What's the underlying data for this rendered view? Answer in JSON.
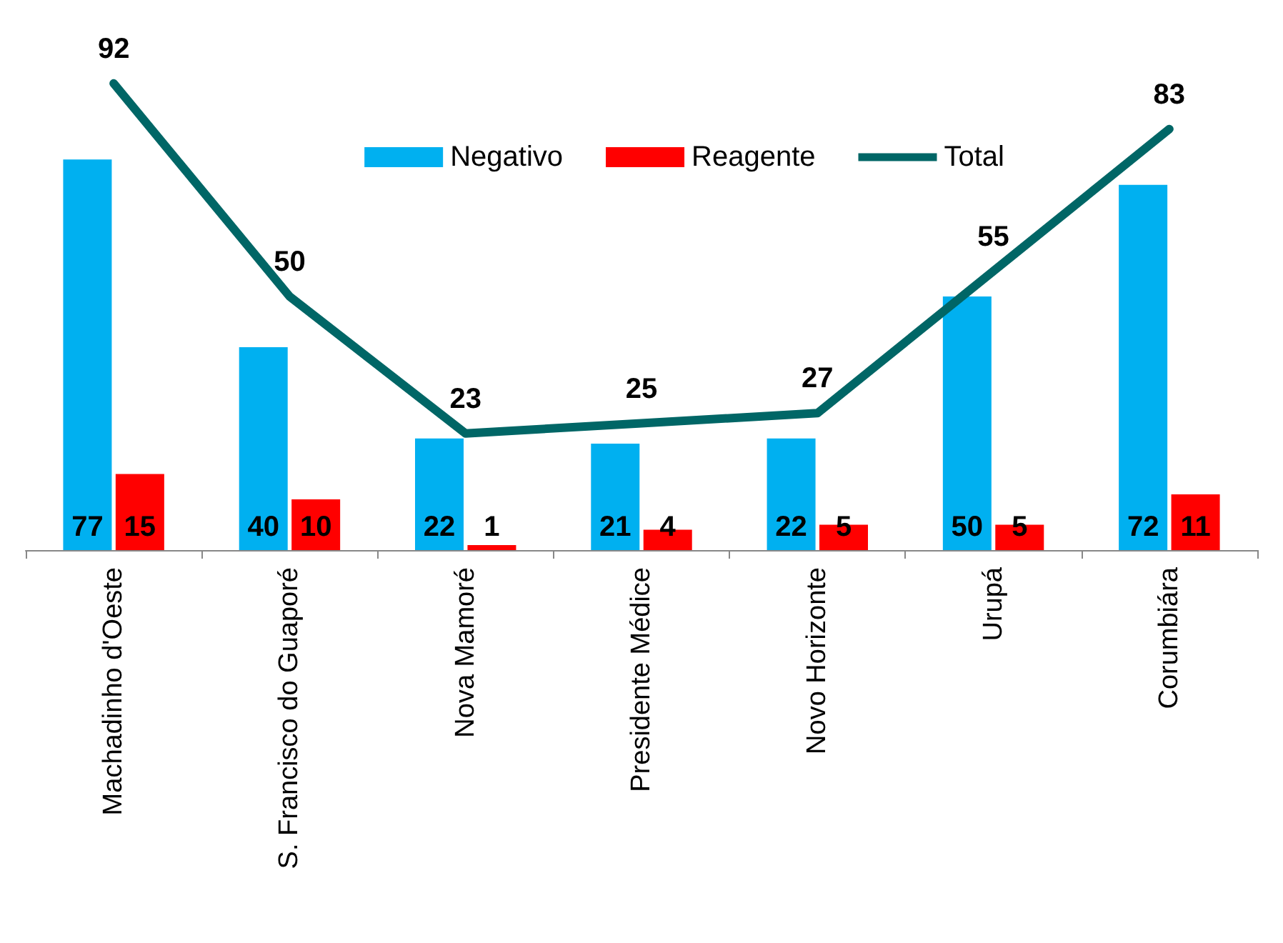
{
  "chart_data": {
    "type": "bar",
    "categories": [
      "Machadinho d'Oeste",
      "S. Francisco do Guaporé",
      "Nova Mamoré",
      "Presidente Médice",
      "Novo Horizonte",
      "Urupá",
      "Corumbiára"
    ],
    "series": [
      {
        "name": "Negativo",
        "color": "#00b0f0",
        "values": [
          77,
          40,
          22,
          21,
          22,
          50,
          72
        ]
      },
      {
        "name": "Reagente",
        "color": "#ff0000",
        "values": [
          15,
          10,
          1,
          4,
          5,
          5,
          11
        ]
      },
      {
        "name": "Total",
        "type": "line",
        "color": "#006666",
        "values": [
          92,
          50,
          23,
          25,
          27,
          55,
          83
        ]
      }
    ],
    "data_labels": true,
    "legend": "top right",
    "grid": false,
    "marker": "none",
    "line_style": "solid"
  }
}
